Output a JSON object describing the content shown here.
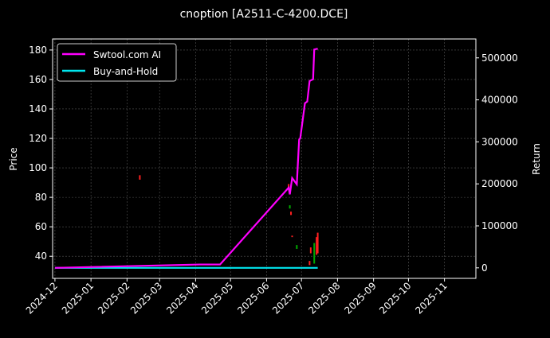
{
  "chart_data": {
    "type": "line",
    "title": "cnoption [A2511-C-4200.DCE]",
    "ylabel": "Price",
    "y2label": "Return",
    "ylim": [
      25,
      187.5
    ],
    "y2lim": [
      -25000,
      545000
    ],
    "xlim": [
      "2024-11-29",
      "2025-11-28"
    ],
    "grid": true,
    "legend_position": "top-left",
    "x_ticks": [
      "2024-12",
      "2025-01",
      "2025-02",
      "2025-03",
      "2025-04",
      "2025-05",
      "2025-06",
      "2025-07",
      "2025-08",
      "2025-09",
      "2025-10",
      "2025-11"
    ],
    "y_ticks": [
      40,
      60,
      80,
      100,
      120,
      140,
      160,
      180
    ],
    "y2_ticks": [
      0,
      100000,
      200000,
      300000,
      400000,
      500000
    ],
    "y2_tick_labels": [
      "0",
      "100000",
      "200000",
      "300000",
      "400000",
      "500000"
    ],
    "series": [
      {
        "name": "Swtool.com AI",
        "color": "#ff00ff",
        "axis": "right",
        "points": [
          [
            "2024-12-01",
            0
          ],
          [
            "2025-04-05",
            8000
          ],
          [
            "2025-04-22",
            8000
          ],
          [
            "2025-06-20",
            191000
          ],
          [
            "2025-06-21",
            175000
          ],
          [
            "2025-06-23",
            214000
          ],
          [
            "2025-06-27",
            199000
          ],
          [
            "2025-06-29",
            305000
          ],
          [
            "2025-06-30",
            309000
          ],
          [
            "2025-07-04",
            392000
          ],
          [
            "2025-07-06",
            396000
          ],
          [
            "2025-07-08",
            445000
          ],
          [
            "2025-07-11",
            449000
          ],
          [
            "2025-07-12",
            520000
          ],
          [
            "2025-07-15",
            522000
          ]
        ]
      },
      {
        "name": "Buy-and-Hold",
        "color": "#00e5ee",
        "axis": "right",
        "points": [
          [
            "2024-12-01",
            0
          ],
          [
            "2025-07-15",
            0
          ]
        ]
      }
    ],
    "candles": [
      {
        "date": "2025-02-12",
        "low": 92,
        "high": 95,
        "dir": "down"
      },
      {
        "date": "2025-06-20",
        "low": 86,
        "high": 89,
        "dir": "down"
      },
      {
        "date": "2025-06-21",
        "low": 72.4,
        "high": 74.6,
        "dir": "up"
      },
      {
        "date": "2025-06-22",
        "low": 68,
        "high": 70.3,
        "dir": "down"
      },
      {
        "date": "2025-06-23",
        "low": 53,
        "high": 54,
        "dir": "down"
      },
      {
        "date": "2025-06-27",
        "low": 45,
        "high": 47.6,
        "dir": "up"
      },
      {
        "date": "2025-07-08",
        "low": 34,
        "high": 36.8,
        "dir": "down"
      },
      {
        "date": "2025-07-09",
        "low": 42,
        "high": 46,
        "dir": "down"
      },
      {
        "date": "2025-07-12",
        "low": 35,
        "high": 49,
        "dir": "up"
      },
      {
        "date": "2025-07-14",
        "low": 41,
        "high": 53,
        "dir": "down"
      },
      {
        "date": "2025-07-15",
        "low": 42,
        "high": 56,
        "dir": "down"
      }
    ],
    "colors": {
      "up": "#00aa00",
      "down": "#ff2020",
      "grid": "#555555"
    }
  }
}
